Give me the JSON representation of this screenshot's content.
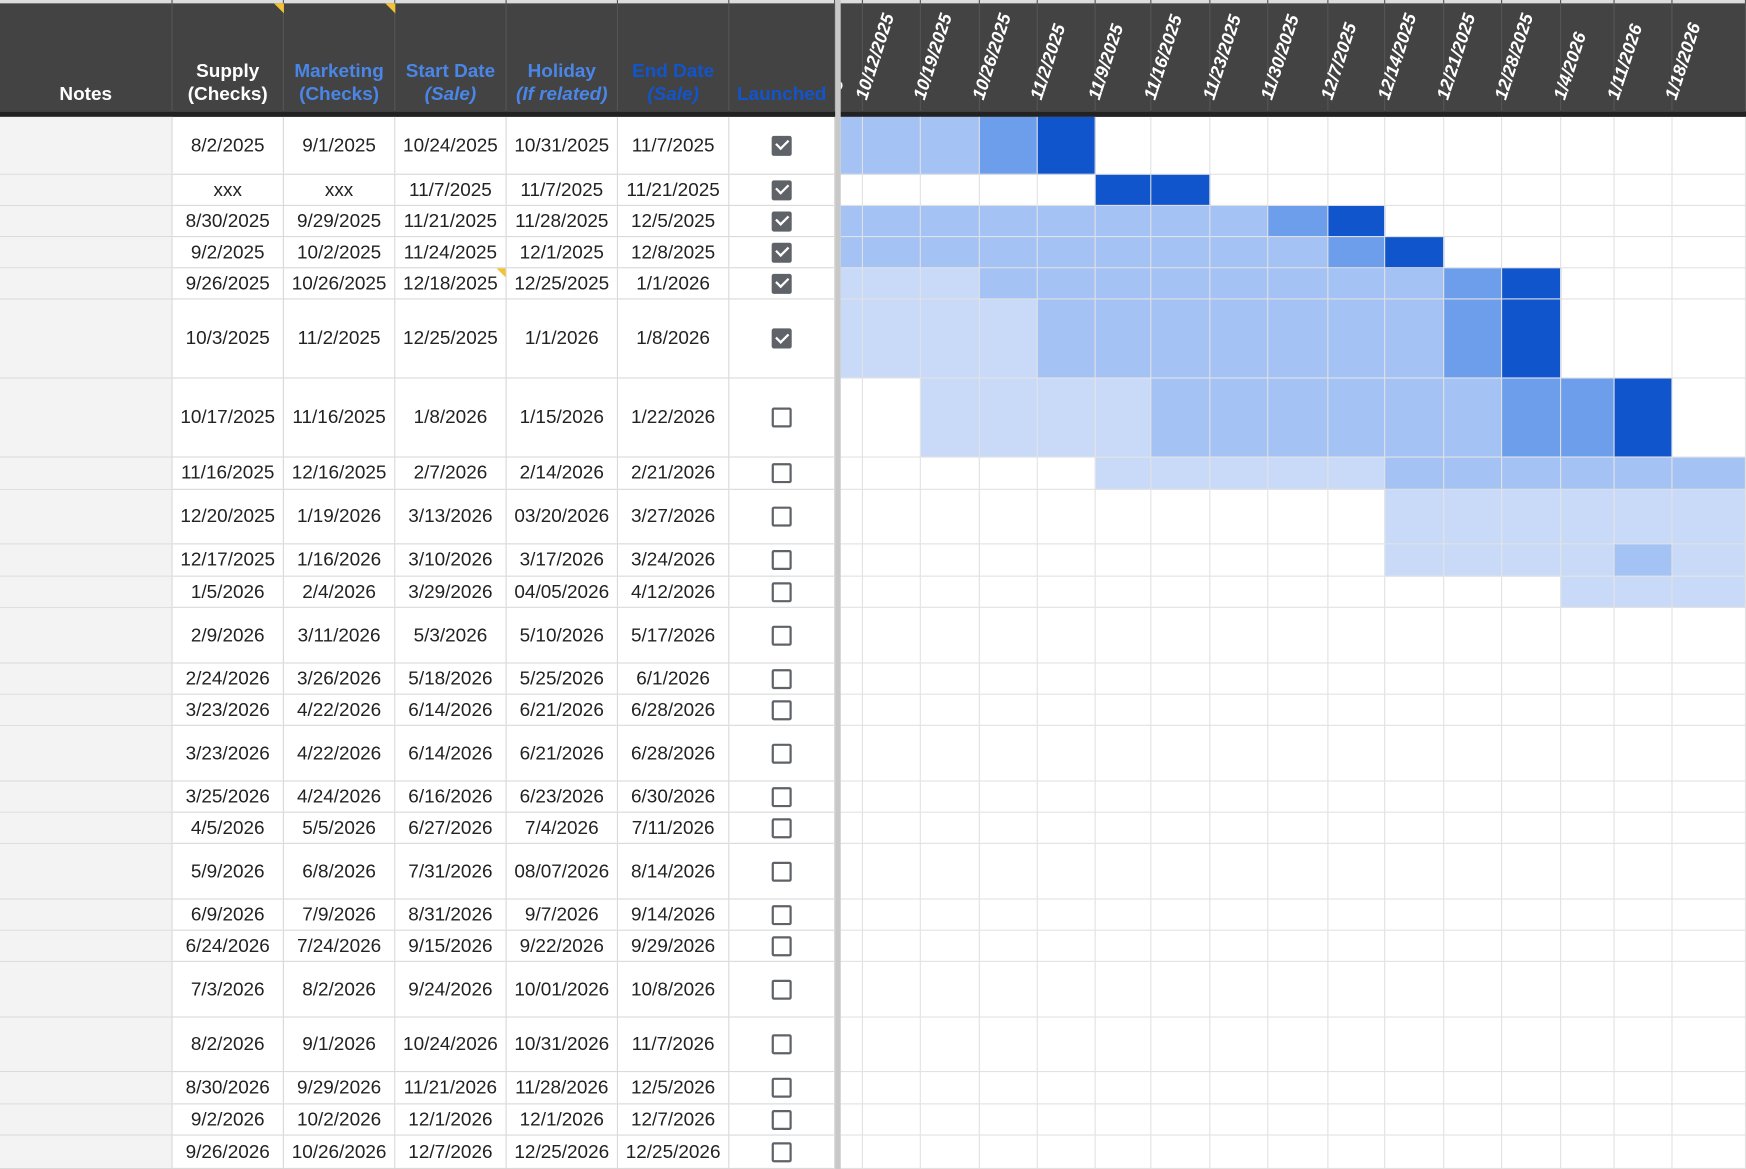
{
  "headers": {
    "notes": "Notes",
    "supply": {
      "main": "Supply",
      "sub": "(Checks)"
    },
    "marketing": {
      "main": "Marketing",
      "sub": "(Checks)"
    },
    "start": {
      "main": "Start Date",
      "sub": "(Sale)"
    },
    "holiday": {
      "main": "Holiday",
      "sub": "(If related)"
    },
    "end": {
      "main": "End Date",
      "sub": "(Sale)"
    },
    "launched": "Launched"
  },
  "timeline": {
    "partial_first": "25",
    "weeks": [
      "10/12/2025",
      "10/19/2025",
      "10/26/2025",
      "11/2/2025",
      "11/9/2025",
      "11/16/2025",
      "11/23/2025",
      "11/30/2025",
      "12/7/2025",
      "12/14/2025",
      "12/21/2025",
      "12/28/2025",
      "1/4/2026",
      "1/11/2026",
      "1/18/2026"
    ]
  },
  "colors": {
    "header_bg": "#434343",
    "shade1": "#c9daf8",
    "shade2": "#a4c2f4",
    "shade3": "#6d9eeb",
    "shade4": "#1155cc",
    "note_marker": "#f1c232"
  },
  "rows": [
    {
      "supply": "8/2/2025",
      "marketing": "9/1/2025",
      "start": "10/24/2025",
      "holiday": "10/31/2025",
      "end": "11/7/2025",
      "launched": true
    },
    {
      "supply": "xxx",
      "marketing": "xxx",
      "start": "11/7/2025",
      "holiday": "11/7/2025",
      "end": "11/21/2025",
      "launched": true
    },
    {
      "supply": "8/30/2025",
      "marketing": "9/29/2025",
      "start": "11/21/2025",
      "holiday": "11/28/2025",
      "end": "12/5/2025",
      "launched": true
    },
    {
      "supply": "9/2/2025",
      "marketing": "10/2/2025",
      "start": "11/24/2025",
      "holiday": "12/1/2025",
      "end": "12/8/2025",
      "launched": true
    },
    {
      "supply": "9/26/2025",
      "marketing": "10/26/2025",
      "start": "12/18/2025",
      "holiday": "12/25/2025",
      "end": "1/1/2026",
      "launched": true
    },
    {
      "supply": "10/3/2025",
      "marketing": "11/2/2025",
      "start": "12/25/2025",
      "holiday": "1/1/2026",
      "end": "1/8/2026",
      "launched": true
    },
    {
      "supply": "10/17/2025",
      "marketing": "11/16/2025",
      "start": "1/8/2026",
      "holiday": "1/15/2026",
      "end": "1/22/2026",
      "launched": false
    },
    {
      "supply": "11/16/2025",
      "marketing": "12/16/2025",
      "start": "2/7/2026",
      "holiday": "2/14/2026",
      "end": "2/21/2026",
      "launched": false
    },
    {
      "supply": "12/20/2025",
      "marketing": "1/19/2026",
      "start": "3/13/2026",
      "holiday": "03/20/2026",
      "end": "3/27/2026",
      "launched": false
    },
    {
      "supply": "12/17/2025",
      "marketing": "1/16/2026",
      "start": "3/10/2026",
      "holiday": "3/17/2026",
      "end": "3/24/2026",
      "launched": false
    },
    {
      "supply": "1/5/2026",
      "marketing": "2/4/2026",
      "start": "3/29/2026",
      "holiday": "04/05/2026",
      "end": "4/12/2026",
      "launched": false
    },
    {
      "supply": "2/9/2026",
      "marketing": "3/11/2026",
      "start": "5/3/2026",
      "holiday": "5/10/2026",
      "end": "5/17/2026",
      "launched": false
    },
    {
      "supply": "2/24/2026",
      "marketing": "3/26/2026",
      "start": "5/18/2026",
      "holiday": "5/25/2026",
      "end": "6/1/2026",
      "launched": false
    },
    {
      "supply": "3/23/2026",
      "marketing": "4/22/2026",
      "start": "6/14/2026",
      "holiday": "6/21/2026",
      "end": "6/28/2026",
      "launched": false
    },
    {
      "supply": "3/23/2026",
      "marketing": "4/22/2026",
      "start": "6/14/2026",
      "holiday": "6/21/2026",
      "end": "6/28/2026",
      "launched": false
    },
    {
      "supply": "3/25/2026",
      "marketing": "4/24/2026",
      "start": "6/16/2026",
      "holiday": "6/23/2026",
      "end": "6/30/2026",
      "launched": false
    },
    {
      "supply": "4/5/2026",
      "marketing": "5/5/2026",
      "start": "6/27/2026",
      "holiday": "7/4/2026",
      "end": "7/11/2026",
      "launched": false
    },
    {
      "supply": "5/9/2026",
      "marketing": "6/8/2026",
      "start": "7/31/2026",
      "holiday": "08/07/2026",
      "end": "8/14/2026",
      "launched": false
    },
    {
      "supply": "6/9/2026",
      "marketing": "7/9/2026",
      "start": "8/31/2026",
      "holiday": "9/7/2026",
      "end": "9/14/2026",
      "launched": false
    },
    {
      "supply": "6/24/2026",
      "marketing": "7/24/2026",
      "start": "9/15/2026",
      "holiday": "9/22/2026",
      "end": "9/29/2026",
      "launched": false
    },
    {
      "supply": "7/3/2026",
      "marketing": "8/2/2026",
      "start": "9/24/2026",
      "holiday": "10/01/2026",
      "end": "10/8/2026",
      "launched": false
    },
    {
      "supply": "8/2/2026",
      "marketing": "9/1/2026",
      "start": "10/24/2026",
      "holiday": "10/31/2026",
      "end": "11/7/2026",
      "launched": false
    },
    {
      "supply": "8/30/2026",
      "marketing": "9/29/2026",
      "start": "11/21/2026",
      "holiday": "11/28/2026",
      "end": "12/5/2026",
      "launched": false
    },
    {
      "supply": "9/2/2026",
      "marketing": "10/2/2026",
      "start": "12/1/2026",
      "holiday": "12/1/2026",
      "end": "12/7/2026",
      "launched": false
    },
    {
      "supply": "9/26/2026",
      "marketing": "10/26/2026",
      "start": "12/7/2026",
      "holiday": "12/25/2026",
      "end": "12/25/2026",
      "launched": false
    }
  ]
}
